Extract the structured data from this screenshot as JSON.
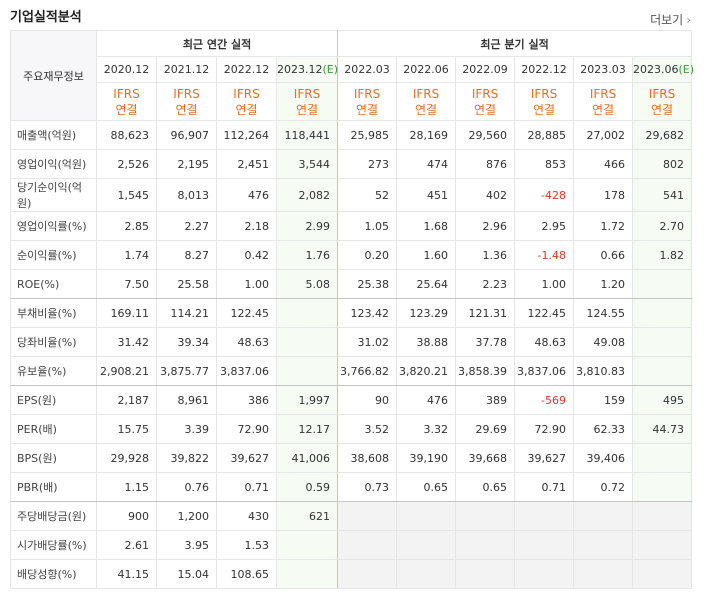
{
  "header": {
    "title": "기업실적분석",
    "more": "더보기"
  },
  "table": {
    "corner": "주요재무정보",
    "groups": [
      {
        "label": "최근 연간 실적",
        "span": 4
      },
      {
        "label": "최근 분기 실적",
        "span": 6
      }
    ],
    "columns": [
      {
        "period": "2020.12",
        "basis": [
          "IFRS",
          "연결"
        ]
      },
      {
        "period": "2021.12",
        "basis": [
          "IFRS",
          "연결"
        ]
      },
      {
        "period": "2022.12",
        "basis": [
          "IFRS",
          "연결"
        ]
      },
      {
        "period": "2023.12",
        "estimate": "(E)",
        "basis": [
          "IFRS",
          "연결"
        ]
      },
      {
        "period": "2022.03",
        "basis": [
          "IFRS",
          "연결"
        ]
      },
      {
        "period": "2022.06",
        "basis": [
          "IFRS",
          "연결"
        ]
      },
      {
        "period": "2022.09",
        "basis": [
          "IFRS",
          "연결"
        ]
      },
      {
        "period": "2022.12",
        "basis": [
          "IFRS",
          "연결"
        ]
      },
      {
        "period": "2023.03",
        "basis": [
          "IFRS",
          "연결"
        ]
      },
      {
        "period": "2023.06",
        "estimate": "(E)",
        "basis": [
          "IFRS",
          "연결"
        ]
      }
    ],
    "rows": [
      {
        "label": "매출액(억원)",
        "values": [
          "88,623",
          "96,907",
          "112,264",
          "118,441",
          "25,985",
          "28,169",
          "29,560",
          "28,885",
          "27,002",
          "29,682"
        ]
      },
      {
        "label": "영업이익(억원)",
        "values": [
          "2,526",
          "2,195",
          "2,451",
          "3,544",
          "273",
          "474",
          "876",
          "853",
          "466",
          "802"
        ]
      },
      {
        "label": "당기순이익(억원)",
        "values": [
          "1,545",
          "8,013",
          "476",
          "2,082",
          "52",
          "451",
          "402",
          "-428",
          "178",
          "541"
        ]
      },
      {
        "label": "영업이익률(%)",
        "values": [
          "2.85",
          "2.27",
          "2.18",
          "2.99",
          "1.05",
          "1.68",
          "2.96",
          "2.95",
          "1.72",
          "2.70"
        ]
      },
      {
        "label": "순이익률(%)",
        "values": [
          "1.74",
          "8.27",
          "0.42",
          "1.76",
          "0.20",
          "1.60",
          "1.36",
          "-1.48",
          "0.66",
          "1.82"
        ]
      },
      {
        "label": "ROE(%)",
        "values": [
          "7.50",
          "25.58",
          "1.00",
          "5.08",
          "25.38",
          "25.64",
          "2.23",
          "1.00",
          "1.20",
          null
        ]
      },
      {
        "label": "부채비율(%)",
        "values": [
          "169.11",
          "114.21",
          "122.45",
          null,
          "123.42",
          "123.29",
          "121.31",
          "122.45",
          "124.55",
          null
        ]
      },
      {
        "label": "당좌비율(%)",
        "values": [
          "31.42",
          "39.34",
          "48.63",
          null,
          "31.02",
          "38.88",
          "37.78",
          "48.63",
          "49.08",
          null
        ]
      },
      {
        "label": "유보율(%)",
        "values": [
          "2,908.21",
          "3,875.77",
          "3,837.06",
          null,
          "3,766.82",
          "3,820.21",
          "3,858.39",
          "3,837.06",
          "3,810.83",
          null
        ]
      },
      {
        "label": "EPS(원)",
        "values": [
          "2,187",
          "8,961",
          "386",
          "1,997",
          "90",
          "476",
          "389",
          "-569",
          "159",
          "495"
        ]
      },
      {
        "label": "PER(배)",
        "values": [
          "15.75",
          "3.39",
          "72.90",
          "12.17",
          "3.52",
          "3.32",
          "29.69",
          "72.90",
          "62.33",
          "44.73"
        ]
      },
      {
        "label": "BPS(원)",
        "values": [
          "29,928",
          "39,822",
          "39,627",
          "41,006",
          "38,608",
          "39,190",
          "39,668",
          "39,627",
          "39,406",
          null
        ]
      },
      {
        "label": "PBR(배)",
        "values": [
          "1.15",
          "0.76",
          "0.71",
          "0.59",
          "0.73",
          "0.65",
          "0.65",
          "0.71",
          "0.72",
          null
        ]
      },
      {
        "label": "주당배당금(원)",
        "values": [
          "900",
          "1,200",
          "430",
          "621",
          null,
          null,
          null,
          null,
          null,
          null
        ]
      },
      {
        "label": "시가배당률(%)",
        "values": [
          "2.61",
          "3.95",
          "1.53",
          null,
          null,
          null,
          null,
          null,
          null,
          null
        ]
      },
      {
        "label": "배당성향(%)",
        "values": [
          "41.15",
          "15.04",
          "108.65",
          null,
          null,
          null,
          null,
          null,
          null,
          null
        ]
      }
    ]
  }
}
